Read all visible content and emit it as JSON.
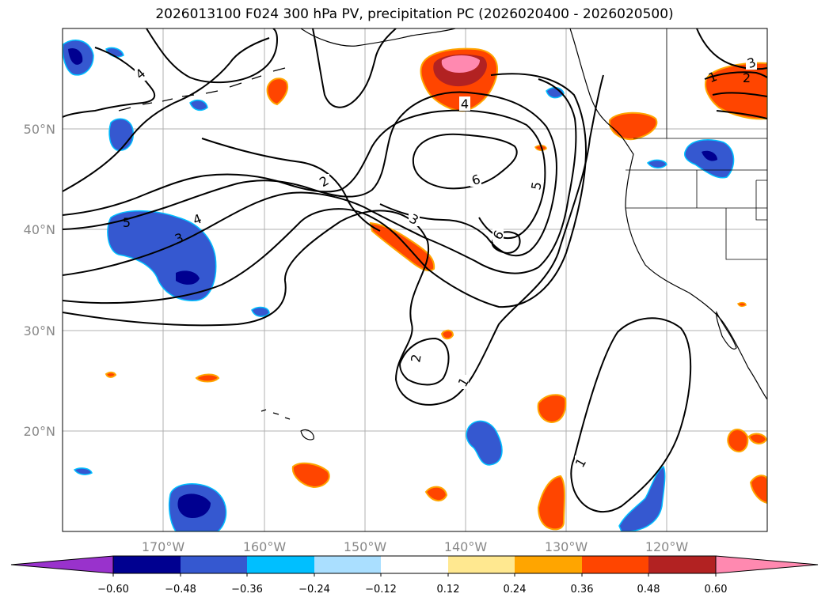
{
  "title": "2026013100 F024 300 hPa PV, precipitation PC (2026020400 - 2026020500)",
  "lat_labels": [
    "50°N",
    "40°N",
    "30°N",
    "20°N"
  ],
  "lon_labels": [
    "170°W",
    "160°W",
    "150°W",
    "140°W",
    "130°W",
    "120°W"
  ],
  "colorbar": {
    "ticks": [
      "−0.60",
      "−0.48",
      "−0.36",
      "−0.24",
      "−0.12",
      "0.12",
      "0.24",
      "0.36",
      "0.48",
      "0.60"
    ],
    "colors": [
      "#9932cc",
      "#000090",
      "#3558d0",
      "#00bfff",
      "#aadfff",
      "#ffffff",
      "#ffe890",
      "#ffa500",
      "#ff4500",
      "#b22222",
      "#ff89b0"
    ]
  },
  "contour_labels": {
    "c1": "1",
    "c2": "2",
    "c3": "3",
    "c4": "4",
    "c5": "5",
    "c6": "6"
  },
  "colors": {
    "shade_blue": "#3558d0",
    "shade_navy": "#000090",
    "shade_cyan": "#00bfff",
    "shade_orange": "#ff4500",
    "shade_gold": "#ffa500",
    "shade_darkred": "#b22222",
    "shade_pink": "#ff89b0",
    "grid": "#b0b0b0",
    "contour": "#000000"
  }
}
